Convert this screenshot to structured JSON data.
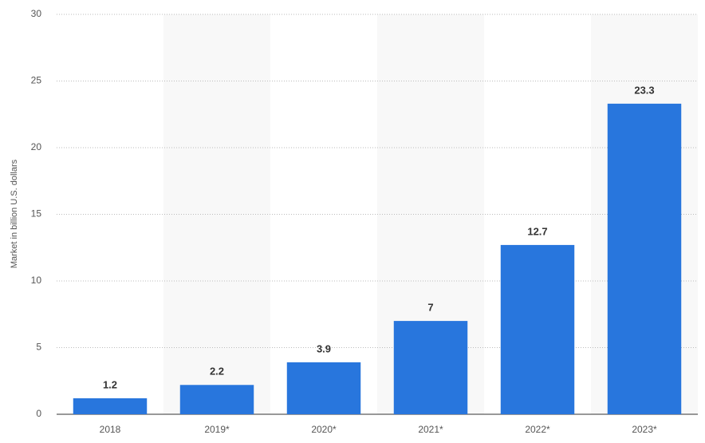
{
  "chart_data": {
    "type": "bar",
    "y_label": "Market in billion U.S. dollars",
    "categories": [
      "2018",
      "2019*",
      "2020*",
      "2021*",
      "2022*",
      "2023*"
    ],
    "values": [
      1.2,
      2.2,
      3.9,
      7,
      12.7,
      23.3
    ],
    "color": "#2876dd",
    "ylim": [
      0,
      30
    ],
    "yticks": [
      0,
      5,
      10,
      15,
      20,
      25,
      30
    ],
    "grid": true
  }
}
